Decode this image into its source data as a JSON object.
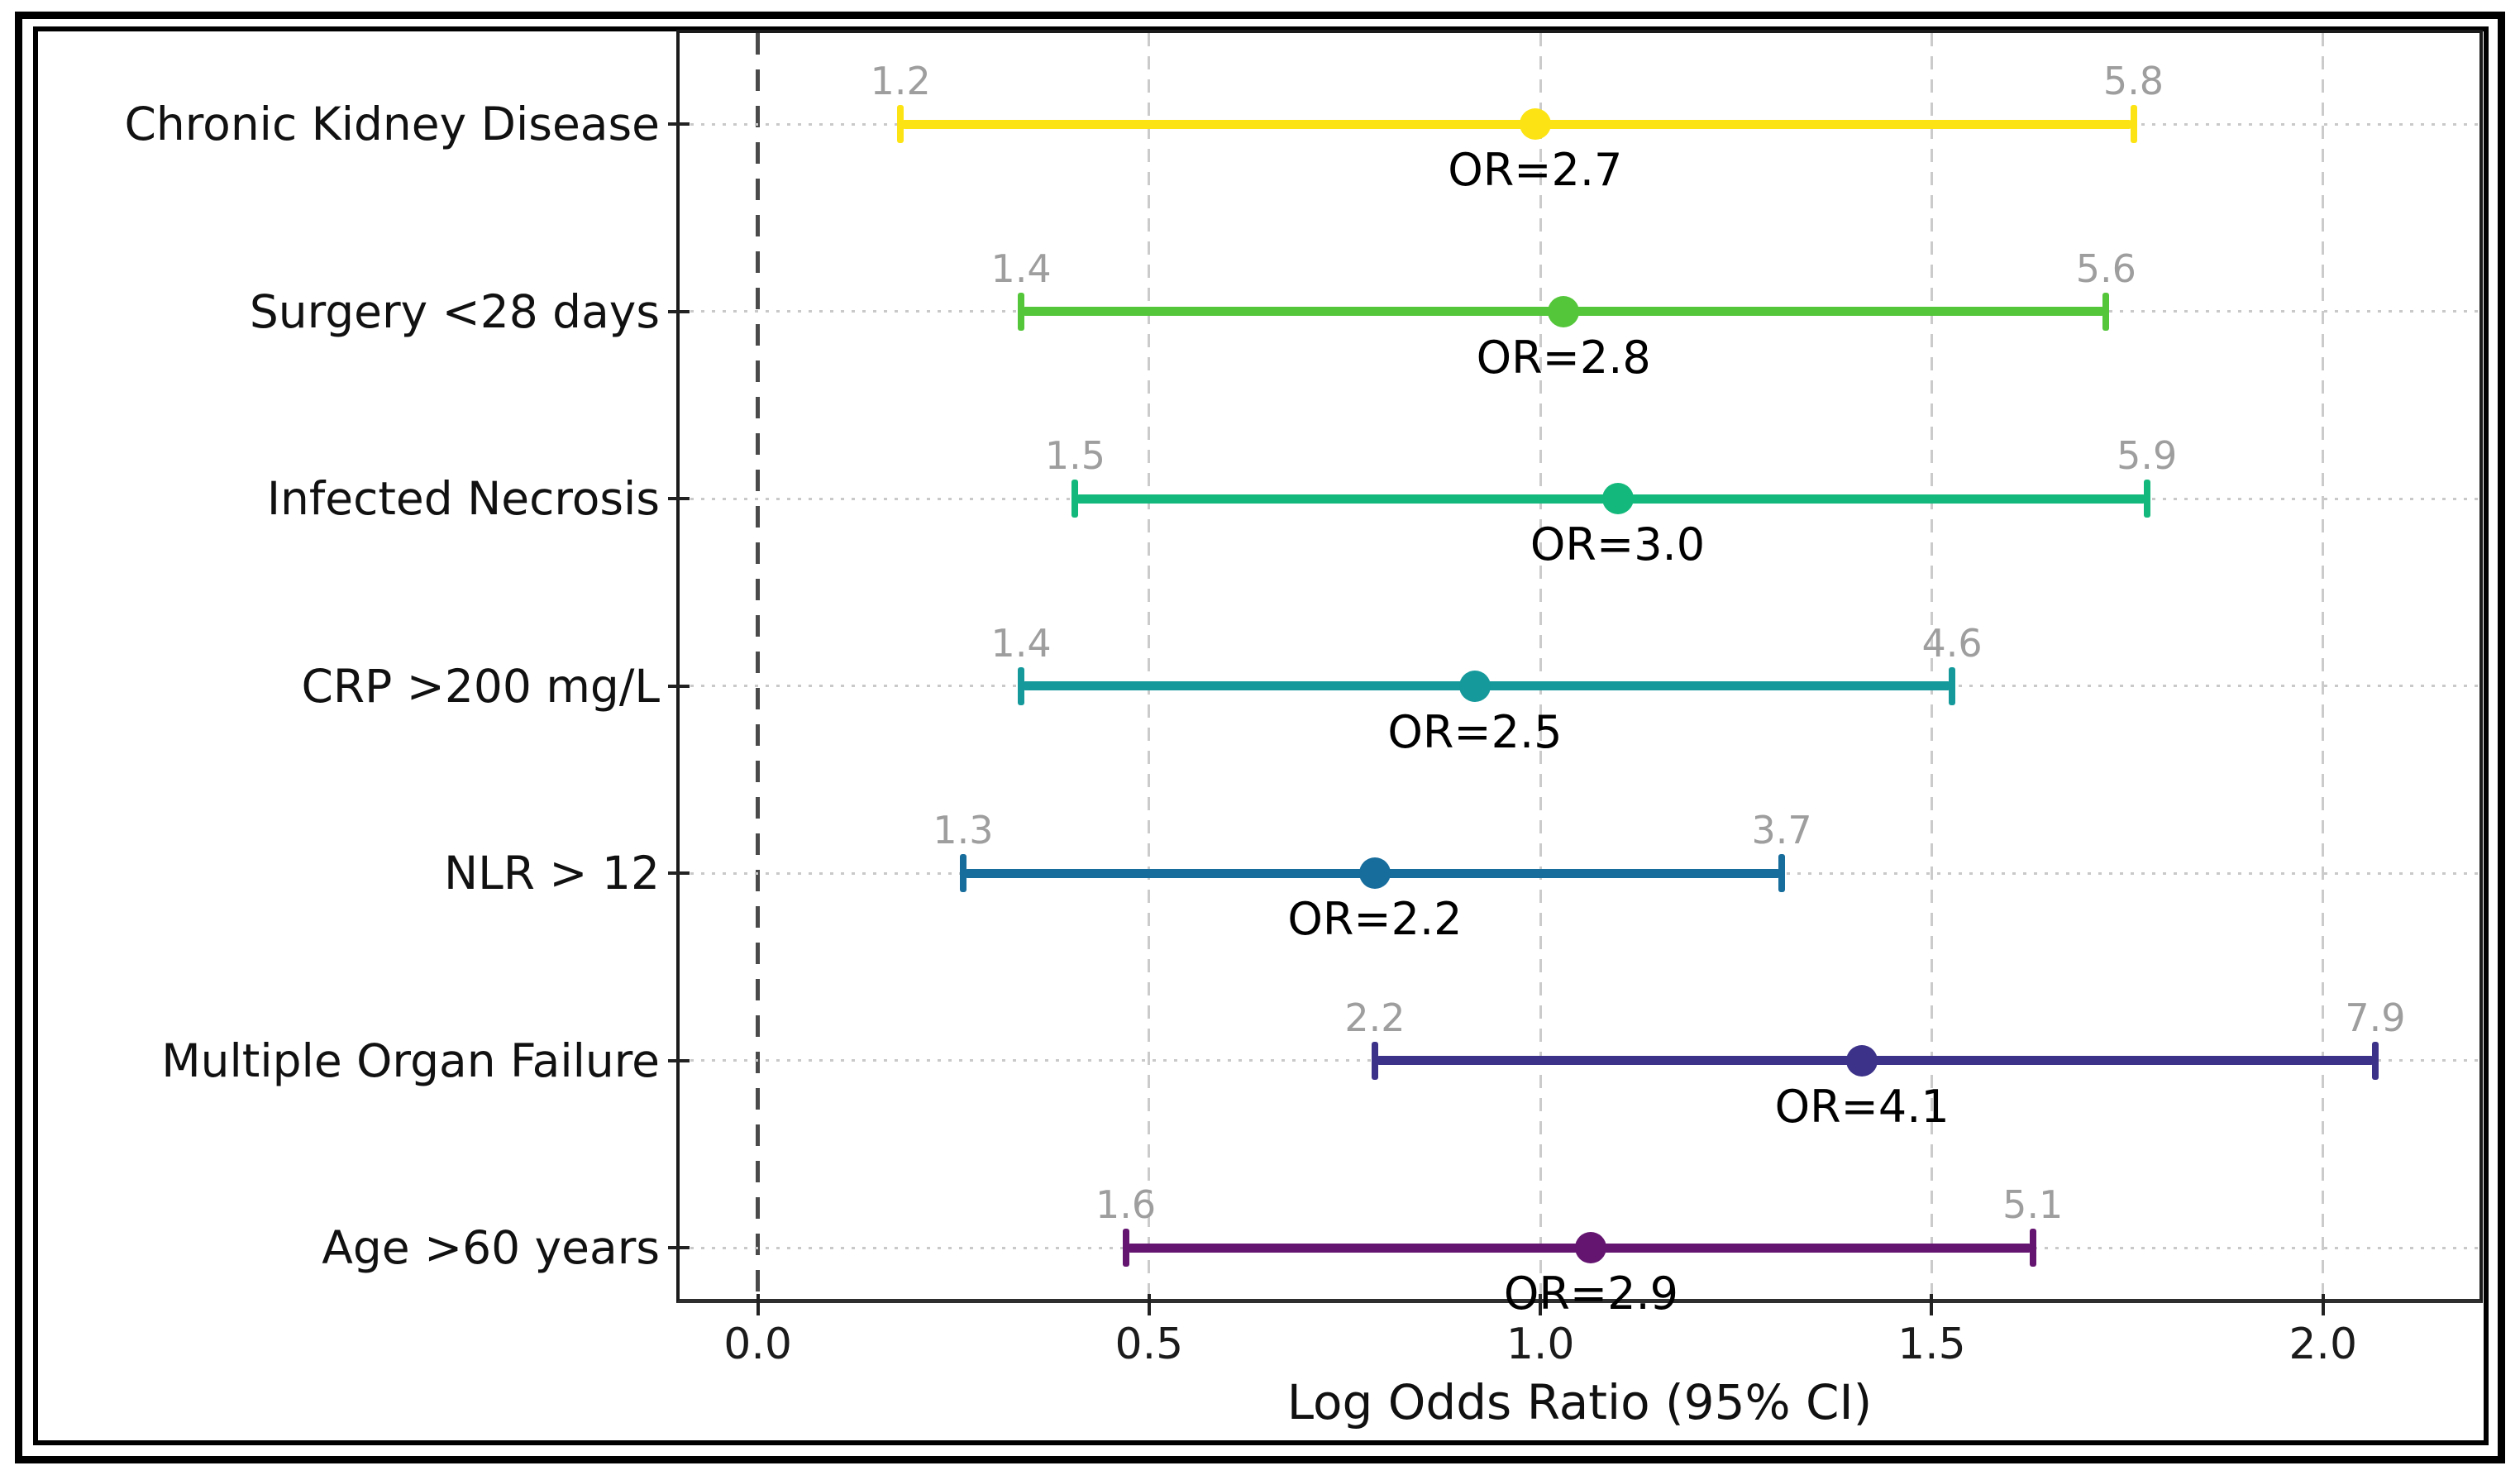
{
  "chart_data": {
    "type": "scatter",
    "subtype": "forest-plot-errorbar",
    "title": "",
    "xlabel": "Log Odds Ratio (95% CI)",
    "ylabel": "",
    "xlim": [
      -0.1,
      2.2
    ],
    "x_ticks": [
      0.0,
      0.5,
      1.0,
      1.5,
      2.0
    ],
    "x_tick_labels": [
      "0.0",
      "0.5",
      "1.0",
      "1.5",
      "2.0"
    ],
    "zero_reference_x": 0.0,
    "grid": "dashed vertical at ticks, dotted horizontal at rows",
    "note": "markers and CI whiskers plotted at natural log of odds ratio values",
    "rows": [
      {
        "label": "Chronic Kidney Disease",
        "or": 2.7,
        "ci_low": 1.2,
        "ci_high": 5.8,
        "or_label": "OR=2.7",
        "ci_low_label": "1.2",
        "ci_high_label": "5.8",
        "color": "#fce414"
      },
      {
        "label": "Surgery <28 days",
        "or": 2.8,
        "ci_low": 1.4,
        "ci_high": 5.6,
        "or_label": "OR=2.8",
        "ci_low_label": "1.4",
        "ci_high_label": "5.6",
        "color": "#54c63a"
      },
      {
        "label": "Infected Necrosis",
        "or": 3.0,
        "ci_low": 1.5,
        "ci_high": 5.9,
        "or_label": "OR=3.0",
        "ci_low_label": "1.5",
        "ci_high_label": "5.9",
        "color": "#13b97c"
      },
      {
        "label": "CRP >200 mg/L",
        "or": 2.5,
        "ci_low": 1.4,
        "ci_high": 4.6,
        "or_label": "OR=2.5",
        "ci_low_label": "1.4",
        "ci_high_label": "4.6",
        "color": "#15999b"
      },
      {
        "label": "NLR > 12",
        "or": 2.2,
        "ci_low": 1.3,
        "ci_high": 3.7,
        "or_label": "OR=2.2",
        "ci_low_label": "1.3",
        "ci_high_label": "3.7",
        "color": "#176d9c"
      },
      {
        "label": "Multiple Organ Failure",
        "or": 4.1,
        "ci_low": 2.2,
        "ci_high": 7.9,
        "or_label": "OR=4.1",
        "ci_low_label": "2.2",
        "ci_high_label": "7.9",
        "color": "#3c3289"
      },
      {
        "label": "Age >60 years",
        "or": 2.9,
        "ci_low": 1.6,
        "ci_high": 5.1,
        "or_label": "OR=2.9",
        "ci_low_label": "1.6",
        "ci_high_label": "5.1",
        "color": "#641570"
      }
    ]
  },
  "colors": {
    "background": "#ffffff",
    "frame": "#000000",
    "axis_spine": "#1a1a1a",
    "grid_light": "#cbcbcb",
    "zero_line": "#4a4a4a",
    "ci_label_text": "#9e9e9e",
    "or_label_text": "#000000",
    "tick_label_text": "#1b1b1b"
  }
}
